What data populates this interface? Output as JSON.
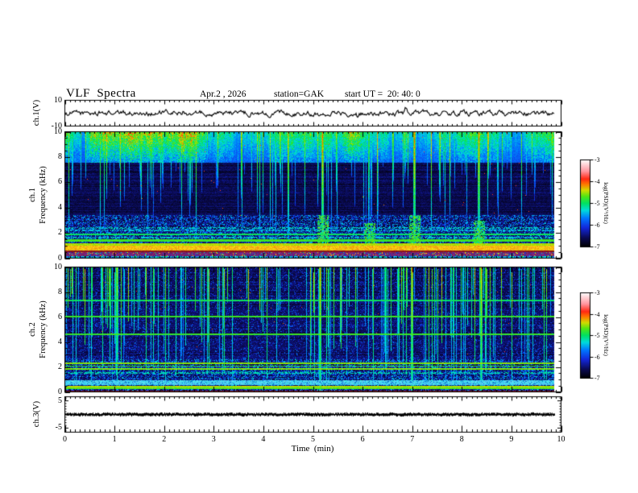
{
  "title": {
    "main": "VLF  Spectra",
    "date": "Apr.2 , 2026",
    "station": "station=GAK",
    "start_ut": "start UT =  20: 40: 0"
  },
  "xaxis": {
    "label": "Time  (min)",
    "range": [
      0,
      10
    ],
    "tick_labels": [
      "0",
      "1",
      "2",
      "3",
      "4",
      "5",
      "6",
      "7",
      "8",
      "9",
      "10"
    ]
  },
  "panels": {
    "ch1_wave": {
      "ylabel": "ch.1(V)",
      "ylim": [
        -10,
        10
      ],
      "ytick_labels": [
        "10",
        "-10"
      ]
    },
    "spec1": {
      "ylabel_ch": "ch.1",
      "ylabel_freq": "Frequency  (kHz)",
      "ylim": [
        0,
        10
      ],
      "ytick_labels": [
        "10",
        "8",
        "6",
        "4",
        "2",
        "0"
      ]
    },
    "spec2": {
      "ylabel_ch": "ch.2",
      "ylabel_freq": "Frequency  (kHz)",
      "ylim": [
        0,
        10
      ],
      "ytick_labels": [
        "10",
        "8",
        "6",
        "4",
        "2",
        "0"
      ]
    },
    "ch3_wave": {
      "ylabel": "ch.3(V)",
      "ylim": [
        -6.5,
        6.5
      ],
      "ytick_labels": [
        "5",
        "-5"
      ]
    }
  },
  "colorbar": {
    "label": "log(PSD)(V²/Hz)",
    "range": [
      -7,
      -3
    ],
    "tick_labels": [
      "-3",
      "-4",
      "-5",
      "-6",
      "-7"
    ],
    "colormap": [
      [
        0.0,
        "#000000"
      ],
      [
        0.1,
        "#0a0a50"
      ],
      [
        0.22,
        "#1428dc"
      ],
      [
        0.33,
        "#0078ff"
      ],
      [
        0.42,
        "#00dcdc"
      ],
      [
        0.5,
        "#00e164"
      ],
      [
        0.58,
        "#50e614"
      ],
      [
        0.65,
        "#d2dc00"
      ],
      [
        0.72,
        "#ff7800"
      ],
      [
        0.78,
        "#ff2814"
      ],
      [
        0.87,
        "#ff96a0"
      ],
      [
        1.0,
        "#ffffff"
      ]
    ]
  },
  "chart_data": [
    {
      "type": "line",
      "name": "ch.1 voltage waveform",
      "x_range_min": [
        0,
        9.84
      ],
      "ylim_v": [
        -10,
        10
      ],
      "mean_v": 0,
      "noise_amplitude_v": 3.5,
      "color": "#000000",
      "description": "continuous broadband noise trace centered on 0 V"
    },
    {
      "type": "heatmap",
      "name": "ch.1 VLF spectrogram",
      "xlim_min": [
        0,
        10
      ],
      "ylim_khz": [
        0,
        10
      ],
      "zlim_log_psd": [
        -7,
        -3
      ],
      "features": {
        "background_level": -6.9,
        "speckle_below_khz": 3.4,
        "dense_top_band_khz": [
          7.6,
          10
        ],
        "streak_density": 0.24,
        "strong_streaks_min": [
          5.2,
          7.05,
          8.35
        ],
        "horizontal_lines_khz": [
          {
            "f": 2.42,
            "level": -5.4,
            "dotted": true
          },
          {
            "f": 2.2,
            "level": -5.5,
            "dotted": true
          },
          {
            "f": 1.9,
            "level": -5.1,
            "dotted": false
          },
          {
            "f": 1.62,
            "level": -5.4,
            "dotted": true
          },
          {
            "f": 1.42,
            "level": -4.9,
            "dotted": false,
            "w": 0.08
          },
          {
            "f": 1.08,
            "level": -4.6,
            "dotted": false,
            "w": 0.1
          }
        ],
        "bands": [
          {
            "f0": 0.62,
            "f1": 0.97,
            "style": "orange-yellow"
          },
          {
            "f0": 0.5,
            "f1": 0.61,
            "style": "maroon"
          },
          {
            "f0": 0.16,
            "f1": 0.49,
            "style": "purple-speckle"
          },
          {
            "f0": 0.0,
            "f1": 0.15,
            "style": "blue-cyan-speckle"
          }
        ],
        "patches": [
          {
            "t": 5.2,
            "f0": 1.2,
            "f1": 3.4
          },
          {
            "t": 6.15,
            "f0": 1.2,
            "f1": 2.8
          },
          {
            "t": 7.05,
            "f0": 1.2,
            "f1": 3.4
          },
          {
            "t": 8.35,
            "f0": 1.2,
            "f1": 3.0
          }
        ]
      }
    },
    {
      "type": "heatmap",
      "name": "ch.2 VLF spectrogram",
      "xlim_min": [
        0,
        10
      ],
      "ylim_khz": [
        0,
        10
      ],
      "zlim_log_psd": [
        -7,
        -3
      ],
      "features": {
        "background_level": -6.85,
        "speckle_below_khz": 2.6,
        "dense_top_band_khz": null,
        "streak_density": 0.26,
        "full_height_streaks": true,
        "strong_streaks_min": [
          5.15,
          7.0,
          8.4
        ],
        "horizontal_lines_khz": [
          {
            "f": 7.35,
            "level": -5.1,
            "dotted": false
          },
          {
            "f": 6.08,
            "level": -4.9,
            "dotted": false
          },
          {
            "f": 4.62,
            "level": -4.9,
            "dotted": false
          },
          {
            "f": 2.3,
            "level": -4.7,
            "dotted": false
          },
          {
            "f": 2.08,
            "level": -4.9,
            "dotted": false
          },
          {
            "f": 1.85,
            "level": -4.7,
            "dotted": false
          },
          {
            "f": 1.5,
            "level": -5.3,
            "dotted": true
          },
          {
            "f": 0.42,
            "level": -4.6,
            "dotted": false
          },
          {
            "f": 0.28,
            "level": -4.8,
            "dotted": false
          }
        ],
        "bands": [
          {
            "f0": 0.55,
            "f1": 0.92,
            "style": "cyan-band"
          },
          {
            "f0": 0.0,
            "f1": 0.08,
            "style": "maroon"
          }
        ],
        "patches": []
      }
    },
    {
      "type": "line",
      "name": "ch.3 voltage waveform",
      "x_range_min": [
        0,
        9.84
      ],
      "ylim_v": [
        -6.5,
        6.5
      ],
      "mean_v": 0,
      "noise_amplitude_v": 0.4,
      "color": "#000000",
      "description": "flat thick black trace at 0 V"
    }
  ]
}
